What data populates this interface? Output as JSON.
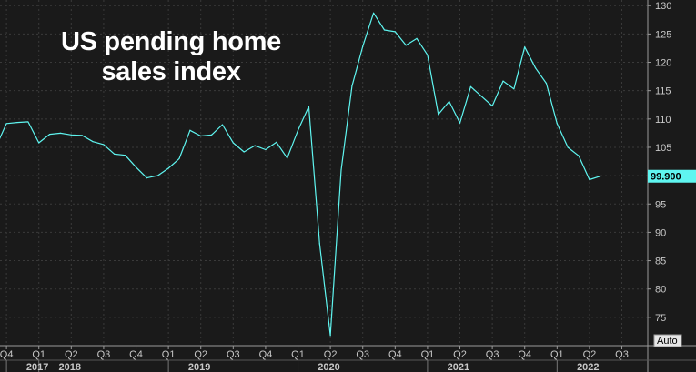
{
  "chart_data": {
    "type": "line",
    "title_lines": [
      "US pending home",
      "sales index"
    ],
    "xlabel": "",
    "ylabel": "",
    "ylim": [
      70,
      131
    ],
    "y_ticks": [
      75,
      80,
      85,
      90,
      95,
      100,
      105,
      110,
      115,
      120,
      125,
      130
    ],
    "last_value_label": "99.900",
    "auto_label": "Auto",
    "grid": true,
    "quarter_labels": [
      {
        "label": "Q4",
        "t": 2017.75
      },
      {
        "label": "Q1",
        "t": 2018.0
      },
      {
        "label": "Q2",
        "t": 2018.25
      },
      {
        "label": "Q3",
        "t": 2018.5
      },
      {
        "label": "Q4",
        "t": 2018.75
      },
      {
        "label": "Q1",
        "t": 2019.0
      },
      {
        "label": "Q2",
        "t": 2019.25
      },
      {
        "label": "Q3",
        "t": 2019.5
      },
      {
        "label": "Q4",
        "t": 2019.75
      },
      {
        "label": "Q1",
        "t": 2020.0
      },
      {
        "label": "Q2",
        "t": 2020.25
      },
      {
        "label": "Q3",
        "t": 2020.5
      },
      {
        "label": "Q4",
        "t": 2020.75
      },
      {
        "label": "Q1",
        "t": 2021.0
      },
      {
        "label": "Q2",
        "t": 2021.25
      },
      {
        "label": "Q3",
        "t": 2021.5
      },
      {
        "label": "Q4",
        "t": 2021.75
      },
      {
        "label": "Q1",
        "t": 2022.0
      },
      {
        "label": "Q2",
        "t": 2022.25
      },
      {
        "label": "Q3",
        "t": 2022.5
      }
    ],
    "year_labels": [
      {
        "label": "2017",
        "t": 2017.75
      },
      {
        "label": "2018",
        "t": 2018.0
      },
      {
        "label": "2019",
        "t": 2019.0
      },
      {
        "label": "2020",
        "t": 2020.0
      },
      {
        "label": "2021",
        "t": 2021.0
      },
      {
        "label": "2022",
        "t": 2022.0
      }
    ],
    "series": [
      {
        "color": "#5ff5f0",
        "x": [
          "2017-09",
          "2017-10",
          "2017-11",
          "2017-12",
          "2018-01",
          "2018-02",
          "2018-03",
          "2018-04",
          "2018-05",
          "2018-06",
          "2018-07",
          "2018-08",
          "2018-09",
          "2018-10",
          "2018-11",
          "2018-12",
          "2019-01",
          "2019-02",
          "2019-03",
          "2019-04",
          "2019-05",
          "2019-06",
          "2019-07",
          "2019-08",
          "2019-09",
          "2019-10",
          "2019-11",
          "2019-12",
          "2020-01",
          "2020-02",
          "2020-03",
          "2020-04",
          "2020-05",
          "2020-06",
          "2020-07",
          "2020-08",
          "2020-09",
          "2020-10",
          "2020-11",
          "2020-12",
          "2021-01",
          "2021-02",
          "2021-03",
          "2021-04",
          "2021-05",
          "2021-06",
          "2021-07",
          "2021-08",
          "2021-09",
          "2021-10",
          "2021-11",
          "2021-12",
          "2022-01",
          "2022-02",
          "2022-03",
          "2022-04",
          "2022-05"
        ],
        "y": [
          105.0,
          109.2,
          109.4,
          109.5,
          105.8,
          107.3,
          107.5,
          107.2,
          107.1,
          106.0,
          105.5,
          103.8,
          103.6,
          101.5,
          99.6,
          100.0,
          101.3,
          103.0,
          108.0,
          107.0,
          107.2,
          109.0,
          105.8,
          104.2,
          105.3,
          104.6,
          105.9,
          103.1,
          108.0,
          112.2,
          88.0,
          71.8,
          101.0,
          115.8,
          122.8,
          128.7,
          125.7,
          125.4,
          123.0,
          124.2,
          121.3,
          110.8,
          113.1,
          109.3,
          115.7,
          114.0,
          112.3,
          116.7,
          115.3,
          122.7,
          119.0,
          116.3,
          109.2,
          105.0,
          103.5,
          99.3,
          99.9
        ]
      }
    ]
  }
}
